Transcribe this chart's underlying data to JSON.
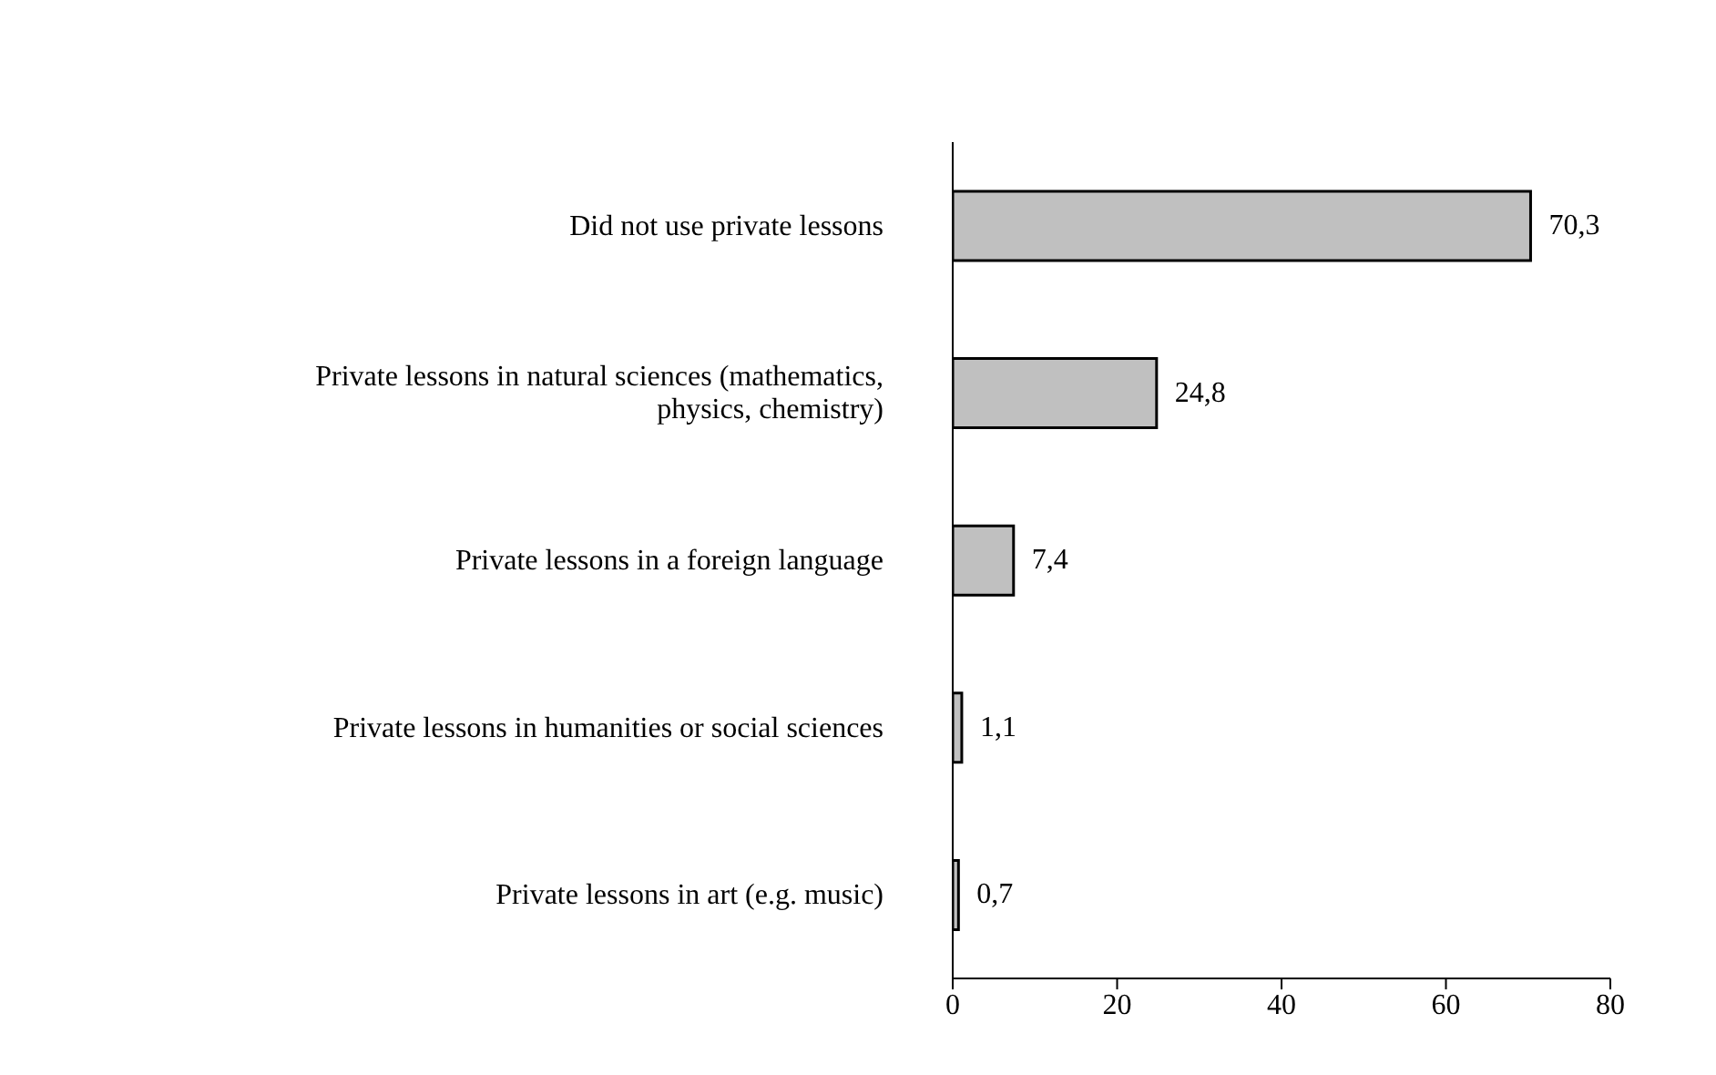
{
  "chart_data": {
    "type": "bar",
    "orientation": "horizontal",
    "categories": [
      "Did not use private lessons",
      "Private lessons in natural sciences (mathematics, physics, chemistry)",
      "Private lessons in a foreign language",
      "Private lessons in humanities or social sciences",
      "Private lessons in art (e.g. music)"
    ],
    "values": [
      70.3,
      24.8,
      7.4,
      1.1,
      0.7
    ],
    "value_labels": [
      "70,3",
      "24,8",
      "7,4",
      "1,1",
      "0,7"
    ],
    "color": "#c0c0c0",
    "xlim": [
      0,
      80
    ],
    "xticks": [
      0,
      20,
      40,
      60,
      80
    ],
    "grid": false
  }
}
